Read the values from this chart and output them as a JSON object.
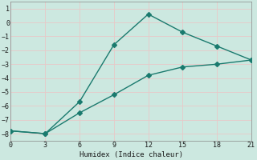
{
  "xlabel": "Humidex (Indice chaleur)",
  "line1_x": [
    0,
    3,
    6,
    9,
    12,
    15,
    18,
    21
  ],
  "line1_y": [
    -7.8,
    -8.0,
    -5.7,
    -1.6,
    0.6,
    -0.7,
    -1.7,
    -2.7
  ],
  "line2_x": [
    0,
    3,
    6,
    9,
    12,
    15,
    18,
    21
  ],
  "line2_y": [
    -7.8,
    -8.0,
    -6.5,
    -5.2,
    -3.8,
    -3.2,
    -3.0,
    -2.7
  ],
  "line_color": "#1a7a6e",
  "bg_color": "#cce8e0",
  "grid_color": "#f0f0f0",
  "xlim": [
    0,
    21
  ],
  "ylim": [
    -8.5,
    1.5
  ],
  "xticks": [
    0,
    3,
    6,
    9,
    12,
    15,
    18,
    21
  ],
  "yticks": [
    -8,
    -7,
    -6,
    -5,
    -4,
    -3,
    -2,
    -1,
    0,
    1
  ],
  "marker": "D",
  "markersize": 3,
  "linewidth": 1.0
}
